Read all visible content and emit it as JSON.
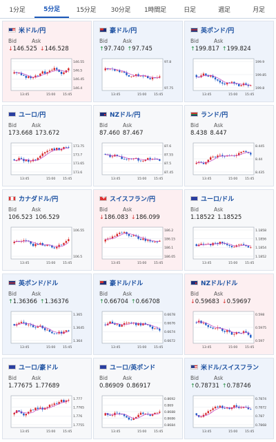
{
  "tabs": [
    {
      "label": "1分足",
      "active": false
    },
    {
      "label": "5分足",
      "active": true
    },
    {
      "label": "15分足",
      "active": false
    },
    {
      "label": "30分足",
      "active": false
    },
    {
      "label": "1時間足",
      "active": false
    },
    {
      "label": "日足",
      "active": false
    },
    {
      "label": "週足",
      "active": false
    },
    {
      "label": "月足",
      "active": false
    }
  ],
  "colors": {
    "up": "#1e8a3c",
    "down": "#d62828",
    "candle_up": "#d62828",
    "candle_down": "#1e5bc6",
    "ma": "#c040c0"
  },
  "bid_label": "Bid",
  "ask_label": "Ask",
  "cards": [
    {
      "pair": "米ドル/円",
      "flag": "us",
      "dir": "down",
      "arrow": "↓",
      "bid": "146.525",
      "ask": "146.528",
      "chart": {
        "y_ticks": [
          "146.55",
          "146.5",
          "146.45",
          "146.4"
        ],
        "x_ticks": [
          "13:45",
          "15:00",
          "15:45"
        ],
        "trend": -0.2
      }
    },
    {
      "pair": "豪ドル/円",
      "flag": "au",
      "dir": "up",
      "arrow": "↑",
      "bid": "97.740",
      "ask": "97.745",
      "chart": {
        "y_ticks": [
          "97.8",
          "97.75"
        ],
        "x_ticks": [
          "13:45",
          "15:00",
          "15:45"
        ],
        "trend": -0.8
      }
    },
    {
      "pair": "英ポンド/円",
      "flag": "gb",
      "dir": "up",
      "arrow": "↑",
      "bid": "199.817",
      "ask": "199.824",
      "chart": {
        "y_ticks": [
          "199.9",
          "199.85",
          "199.8"
        ],
        "x_ticks": [
          "13:45",
          "15:00",
          "15:45"
        ],
        "trend": 0.1
      }
    },
    {
      "pair": "ユーロ/円",
      "flag": "eu",
      "dir": "flat",
      "arrow": "",
      "bid": "173.668",
      "ask": "173.672",
      "chart": {
        "y_ticks": [
          "173.75",
          "173.7",
          "173.65",
          "173.6"
        ],
        "x_ticks": [
          "13:45",
          "15:00",
          "15:45"
        ],
        "trend": 0.1
      }
    },
    {
      "pair": "NZドル/円",
      "flag": "nz",
      "dir": "flat",
      "arrow": "",
      "bid": "87.460",
      "ask": "87.467",
      "chart": {
        "y_ticks": [
          "87.6",
          "87.55",
          "87.5",
          "87.45"
        ],
        "x_ticks": [
          "13:45",
          "15:00",
          "15:45"
        ],
        "trend": -0.9
      }
    },
    {
      "pair": "ランド/円",
      "flag": "za",
      "dir": "flat",
      "arrow": "",
      "bid": "8.438",
      "ask": "8.447",
      "chart": {
        "y_ticks": [
          "8.445",
          "8.44",
          "8.435"
        ],
        "x_ticks": [
          "13:45",
          "15:00",
          "15:45"
        ],
        "trend": 0.9
      }
    },
    {
      "pair": "カナダドル/円",
      "flag": "ca",
      "dir": "flat",
      "arrow": "",
      "bid": "106.523",
      "ask": "106.529",
      "chart": {
        "y_ticks": [
          "106.55",
          "106.5"
        ],
        "x_ticks": [
          "13:45",
          "15:00",
          "15:45"
        ],
        "trend": 0.0
      }
    },
    {
      "pair": "スイスフラン/円",
      "flag": "ch",
      "dir": "down",
      "arrow": "↓",
      "bid": "186.083",
      "ask": "186.099",
      "chart": {
        "y_ticks": [
          "186.2",
          "186.15",
          "186.1",
          "186.05"
        ],
        "x_ticks": [
          "13:45",
          "15:00",
          "15:45"
        ],
        "trend": -0.3
      }
    },
    {
      "pair": "ユーロ/ドル",
      "flag": "eu",
      "dir": "flat",
      "arrow": "",
      "bid": "1.18522",
      "ask": "1.18525",
      "chart": {
        "y_ticks": [
          "1.1858",
          "1.1856",
          "1.1854",
          "1.1852"
        ],
        "x_ticks": [
          "13:45",
          "15:00",
          "15:45"
        ],
        "trend": 0.2
      }
    },
    {
      "pair": "英ポンド/ドル",
      "flag": "gb",
      "dir": "up",
      "arrow": "↑",
      "bid": "1.36366",
      "ask": "1.36376",
      "chart": {
        "y_ticks": [
          "1.365",
          "1.3645",
          "1.364"
        ],
        "x_ticks": [
          "13:45",
          "15:00",
          "15:45"
        ],
        "trend": -0.6
      }
    },
    {
      "pair": "豪ドル/ドル",
      "flag": "au",
      "dir": "up",
      "arrow": "↑",
      "bid": "0.66704",
      "ask": "0.66708",
      "chart": {
        "y_ticks": [
          "0.6678",
          "0.6676",
          "0.6674",
          "0.6672"
        ],
        "x_ticks": [
          "13:45",
          "15:00",
          "15:45"
        ],
        "trend": -0.5
      }
    },
    {
      "pair": "NZドル/ドル",
      "flag": "nz",
      "dir": "down",
      "arrow": "↓",
      "bid": "0.59683",
      "ask": "0.59697",
      "chart": {
        "y_ticks": [
          "0.598",
          "0.5975",
          "0.597"
        ],
        "x_ticks": [
          "13:45",
          "15:00",
          "15:45"
        ],
        "trend": -0.9
      }
    },
    {
      "pair": "ユーロ/豪ドル",
      "flag": "eu",
      "dir": "flat",
      "arrow": "",
      "bid": "1.77675",
      "ask": "1.77689",
      "chart": {
        "y_ticks": [
          "1.777",
          "1.7765",
          "1.776",
          "1.7755"
        ],
        "x_ticks": [
          "13:45",
          "15:00",
          "15:45"
        ],
        "trend": 0.5
      }
    },
    {
      "pair": "ユーロ/英ポンド",
      "flag": "eu",
      "dir": "flat",
      "arrow": "",
      "bid": "0.86909",
      "ask": "0.86917",
      "chart": {
        "y_ticks": [
          "0.8692",
          "0.869",
          "0.8688",
          "0.8686",
          "0.8684"
        ],
        "x_ticks": [
          "13:45",
          "15:00",
          "15:45"
        ],
        "trend": 0.7
      }
    },
    {
      "pair": "米ドル/スイスフラン",
      "flag": "us",
      "dir": "up",
      "arrow": "↑",
      "bid": "0.78731",
      "ask": "0.78746",
      "chart": {
        "y_ticks": [
          "0.7874",
          "0.7872",
          "0.787",
          "0.7868"
        ],
        "x_ticks": [
          "13:45",
          "15:00",
          "15:45"
        ],
        "trend": 0.3
      }
    }
  ]
}
